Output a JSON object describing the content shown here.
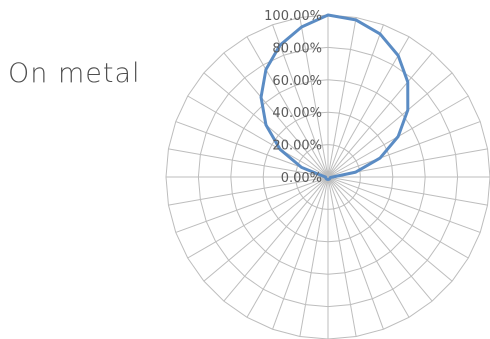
{
  "chart_data": {
    "type": "radar",
    "title": "On metal",
    "tick_labels": [
      "0.00%",
      "20.00%",
      "40.00%",
      "60.00%",
      "80.00%",
      "100.00%"
    ],
    "rlim": [
      0,
      100
    ],
    "num_spokes": 36,
    "grid": true,
    "series": [
      {
        "color": "#5b8cc4",
        "values": [
          100,
          98.5,
          94,
          86.6,
          76.6,
          64.3,
          50,
          34.2,
          17.4,
          3,
          1.5,
          1.5,
          1.5,
          1.5,
          1.5,
          1.5,
          1.5,
          1.5,
          1.5,
          1.5,
          1.5,
          1.5,
          1.5,
          1.5,
          1.5,
          1.5,
          1.5,
          1.5,
          3,
          17.4,
          34.2,
          50,
          64.3,
          76.6,
          86.6,
          94
        ]
      }
    ]
  },
  "colors": {
    "grid": "#bdbdbd",
    "series": "#5b8cc4",
    "text": "#4f4f4f"
  }
}
